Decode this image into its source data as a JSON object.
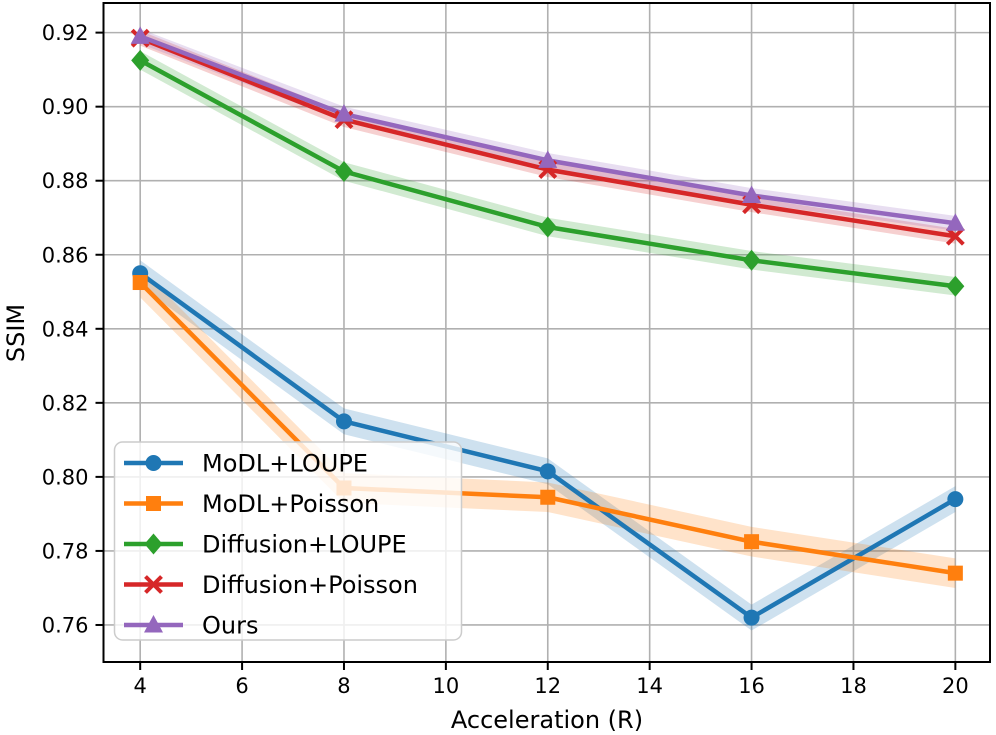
{
  "chart_data": {
    "type": "line",
    "title": "",
    "xlabel": "Acceleration (R)",
    "ylabel": "SSIM",
    "x": [
      4,
      8,
      12,
      16,
      20
    ],
    "series": [
      {
        "name": "MoDL+LOUPE",
        "color": "#1f77b4",
        "marker": "circle",
        "values": [
          0.855,
          0.815,
          0.8015,
          0.762,
          0.794
        ],
        "band": 0.0035
      },
      {
        "name": "MoDL+Poisson",
        "color": "#ff7f0e",
        "marker": "square",
        "values": [
          0.8525,
          0.797,
          0.7945,
          0.7825,
          0.774
        ],
        "band": 0.004
      },
      {
        "name": "Diffusion+LOUPE",
        "color": "#2ca02c",
        "marker": "diamond",
        "values": [
          0.9125,
          0.8825,
          0.8675,
          0.8585,
          0.8515
        ],
        "band": 0.0025
      },
      {
        "name": "Diffusion+Poisson",
        "color": "#d62728",
        "marker": "x",
        "values": [
          0.9185,
          0.8965,
          0.883,
          0.8735,
          0.865
        ],
        "band": 0.002
      },
      {
        "name": "Ours",
        "color": "#9467bd",
        "marker": "triangle-up",
        "values": [
          0.919,
          0.898,
          0.8855,
          0.876,
          0.8685
        ],
        "band": 0.002
      }
    ],
    "xticks": [
      4,
      6,
      8,
      10,
      12,
      14,
      16,
      18,
      20
    ],
    "yticks": [
      0.76,
      0.78,
      0.8,
      0.82,
      0.84,
      0.86,
      0.88,
      0.9,
      0.92
    ],
    "xlim": [
      3.28,
      20.68
    ],
    "ylim": [
      0.75,
      0.928
    ],
    "grid": true,
    "legend_position": "lower left",
    "grid_color": "#b0b0b0",
    "band_opacity": 0.22
  }
}
